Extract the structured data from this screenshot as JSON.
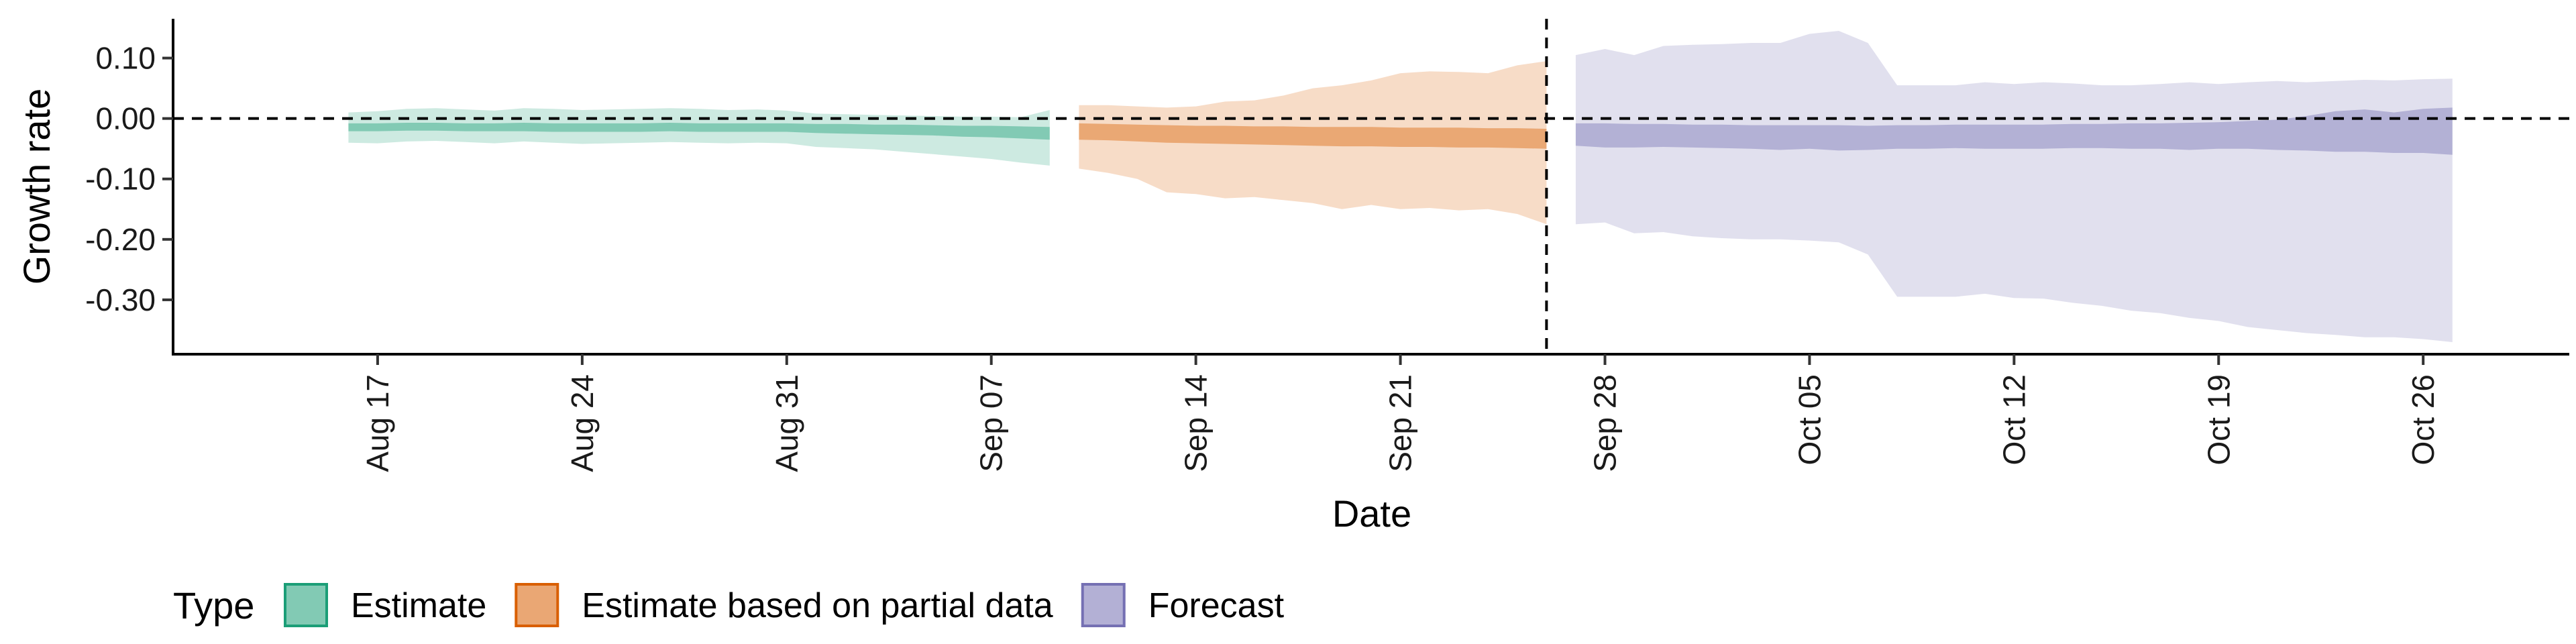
{
  "chart_data": {
    "type": "area",
    "title": "",
    "xlabel": "Date",
    "ylabel": "Growth rate",
    "x_ticks": [
      "Aug 17",
      "Aug 24",
      "Aug 31",
      "Sep 07",
      "Sep 14",
      "Sep 21",
      "Sep 28",
      "Oct 05",
      "Oct 12",
      "Oct 19",
      "Oct 26"
    ],
    "x_tick_dates": [
      "2020-08-17",
      "2020-08-24",
      "2020-08-31",
      "2020-09-07",
      "2020-09-14",
      "2020-09-21",
      "2020-09-28",
      "2020-10-05",
      "2020-10-12",
      "2020-10-19",
      "2020-10-26"
    ],
    "y_ticks": [
      "0.10",
      "0.00",
      "-0.10",
      "-0.20",
      "-0.30"
    ],
    "y_tick_values": [
      0.1,
      0.0,
      -0.1,
      -0.2,
      -0.3
    ],
    "ylim": [
      -0.39,
      0.165
    ],
    "xlim": [
      "2020-08-10",
      "2020-10-31"
    ],
    "hline_y": 0,
    "vline_date": "2020-09-26",
    "grid": false,
    "legend_position": "bottom",
    "legend_title": "Type",
    "series": [
      {
        "name": "Estimate",
        "color": "#1b9e77",
        "x": [
          "2020-08-16",
          "2020-08-17",
          "2020-08-18",
          "2020-08-19",
          "2020-08-20",
          "2020-08-21",
          "2020-08-22",
          "2020-08-23",
          "2020-08-24",
          "2020-08-25",
          "2020-08-26",
          "2020-08-27",
          "2020-08-28",
          "2020-08-29",
          "2020-08-30",
          "2020-08-31",
          "2020-09-01",
          "2020-09-02",
          "2020-09-03",
          "2020-09-04",
          "2020-09-05",
          "2020-09-06",
          "2020-09-07",
          "2020-09-08",
          "2020-09-09"
        ],
        "lower_90": [
          -0.04,
          -0.041,
          -0.038,
          -0.037,
          -0.039,
          -0.041,
          -0.038,
          -0.04,
          -0.042,
          -0.041,
          -0.04,
          -0.039,
          -0.04,
          -0.041,
          -0.04,
          -0.041,
          -0.047,
          -0.049,
          -0.051,
          -0.055,
          -0.059,
          -0.063,
          -0.067,
          -0.073,
          -0.078
        ],
        "lower_50": [
          -0.021,
          -0.021,
          -0.02,
          -0.02,
          -0.021,
          -0.021,
          -0.021,
          -0.022,
          -0.022,
          -0.022,
          -0.022,
          -0.021,
          -0.022,
          -0.022,
          -0.022,
          -0.022,
          -0.024,
          -0.025,
          -0.026,
          -0.027,
          -0.028,
          -0.03,
          -0.031,
          -0.033,
          -0.035
        ],
        "upper_50": [
          -0.008,
          -0.008,
          -0.007,
          -0.007,
          -0.008,
          -0.008,
          -0.007,
          -0.008,
          -0.008,
          -0.008,
          -0.008,
          -0.007,
          -0.008,
          -0.008,
          -0.008,
          -0.008,
          -0.009,
          -0.009,
          -0.01,
          -0.01,
          -0.011,
          -0.012,
          -0.012,
          -0.013,
          -0.014
        ],
        "upper_90": [
          0.01,
          0.012,
          0.016,
          0.017,
          0.015,
          0.013,
          0.017,
          0.016,
          0.014,
          0.015,
          0.016,
          0.017,
          0.016,
          0.014,
          0.015,
          0.013,
          0.008,
          0.007,
          0.006,
          0.005,
          0.004,
          0.003,
          0.003,
          0.002,
          0.014
        ]
      },
      {
        "name": "Estimate based on partial data",
        "color": "#d95f02",
        "x": [
          "2020-09-10",
          "2020-09-11",
          "2020-09-12",
          "2020-09-13",
          "2020-09-14",
          "2020-09-15",
          "2020-09-16",
          "2020-09-17",
          "2020-09-18",
          "2020-09-19",
          "2020-09-20",
          "2020-09-21",
          "2020-09-22",
          "2020-09-23",
          "2020-09-24",
          "2020-09-25",
          "2020-09-26"
        ],
        "lower_90": [
          -0.083,
          -0.09,
          -0.1,
          -0.122,
          -0.125,
          -0.132,
          -0.13,
          -0.135,
          -0.14,
          -0.15,
          -0.143,
          -0.15,
          -0.148,
          -0.152,
          -0.15,
          -0.158,
          -0.175
        ],
        "lower_50": [
          -0.035,
          -0.036,
          -0.038,
          -0.04,
          -0.041,
          -0.042,
          -0.043,
          -0.044,
          -0.045,
          -0.046,
          -0.046,
          -0.047,
          -0.047,
          -0.048,
          -0.048,
          -0.049,
          -0.05
        ],
        "upper_50": [
          -0.008,
          -0.009,
          -0.01,
          -0.011,
          -0.012,
          -0.012,
          -0.013,
          -0.013,
          -0.014,
          -0.014,
          -0.014,
          -0.015,
          -0.015,
          -0.015,
          -0.016,
          -0.016,
          -0.017
        ],
        "upper_90": [
          0.022,
          0.022,
          0.02,
          0.018,
          0.02,
          0.028,
          0.03,
          0.038,
          0.05,
          0.055,
          0.063,
          0.075,
          0.078,
          0.077,
          0.075,
          0.088,
          0.095
        ]
      },
      {
        "name": "Forecast",
        "color": "#7570b3",
        "x": [
          "2020-09-27",
          "2020-09-28",
          "2020-09-29",
          "2020-09-30",
          "2020-10-01",
          "2020-10-02",
          "2020-10-03",
          "2020-10-04",
          "2020-10-05",
          "2020-10-06",
          "2020-10-07",
          "2020-10-08",
          "2020-10-09",
          "2020-10-10",
          "2020-10-11",
          "2020-10-12",
          "2020-10-13",
          "2020-10-14",
          "2020-10-15",
          "2020-10-16",
          "2020-10-17",
          "2020-10-18",
          "2020-10-19",
          "2020-10-20",
          "2020-10-21",
          "2020-10-22",
          "2020-10-23",
          "2020-10-24",
          "2020-10-25",
          "2020-10-26",
          "2020-10-27"
        ],
        "lower_90": [
          -0.175,
          -0.172,
          -0.19,
          -0.188,
          -0.195,
          -0.198,
          -0.2,
          -0.2,
          -0.202,
          -0.205,
          -0.225,
          -0.295,
          -0.295,
          -0.295,
          -0.29,
          -0.297,
          -0.298,
          -0.305,
          -0.31,
          -0.318,
          -0.322,
          -0.33,
          -0.335,
          -0.345,
          -0.35,
          -0.355,
          -0.358,
          -0.362,
          -0.362,
          -0.365,
          -0.37
        ],
        "lower_50": [
          -0.045,
          -0.048,
          -0.048,
          -0.047,
          -0.048,
          -0.049,
          -0.05,
          -0.052,
          -0.05,
          -0.053,
          -0.052,
          -0.05,
          -0.05,
          -0.049,
          -0.05,
          -0.05,
          -0.05,
          -0.049,
          -0.049,
          -0.05,
          -0.05,
          -0.052,
          -0.05,
          -0.05,
          -0.052,
          -0.053,
          -0.055,
          -0.055,
          -0.057,
          -0.057,
          -0.06
        ],
        "upper_50": [
          -0.008,
          -0.008,
          -0.009,
          -0.009,
          -0.01,
          -0.01,
          -0.011,
          -0.011,
          -0.011,
          -0.011,
          -0.012,
          -0.011,
          -0.011,
          -0.01,
          -0.01,
          -0.01,
          -0.01,
          -0.009,
          -0.009,
          -0.008,
          -0.008,
          -0.007,
          -0.006,
          -0.004,
          -0.002,
          0.004,
          0.012,
          0.015,
          0.01,
          0.016,
          0.018
        ],
        "upper_90": [
          0.105,
          0.115,
          0.105,
          0.12,
          0.122,
          0.123,
          0.125,
          0.125,
          0.14,
          0.145,
          0.125,
          0.055,
          0.055,
          0.055,
          0.06,
          0.057,
          0.06,
          0.058,
          0.055,
          0.055,
          0.057,
          0.06,
          0.057,
          0.06,
          0.062,
          0.06,
          0.062,
          0.064,
          0.063,
          0.065,
          0.066
        ]
      }
    ]
  }
}
